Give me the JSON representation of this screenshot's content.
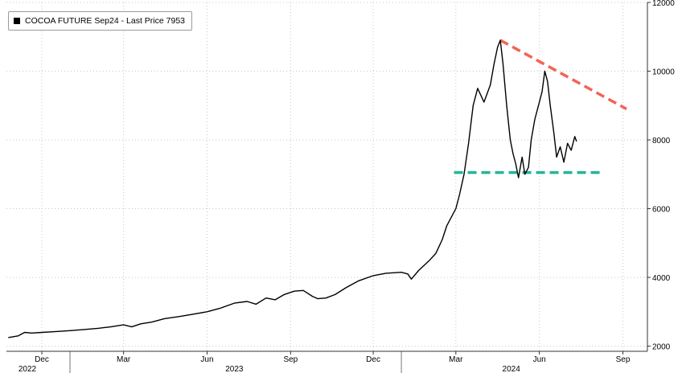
{
  "chart_data": {
    "type": "line",
    "legend_placement": "top-left",
    "grid": true,
    "series": [
      {
        "name": "COCOA FUTURE Sep24 - Last Price 7953",
        "color": "#000000",
        "points": [
          [
            "2022-10-25",
            2250
          ],
          [
            "2022-11-05",
            2300
          ],
          [
            "2022-11-12",
            2400
          ],
          [
            "2022-11-20",
            2380
          ],
          [
            "2022-12-01",
            2400
          ],
          [
            "2022-12-15",
            2420
          ],
          [
            "2023-01-01",
            2450
          ],
          [
            "2023-01-15",
            2480
          ],
          [
            "2023-02-01",
            2520
          ],
          [
            "2023-02-15",
            2560
          ],
          [
            "2023-03-01",
            2620
          ],
          [
            "2023-03-10",
            2560
          ],
          [
            "2023-03-20",
            2650
          ],
          [
            "2023-04-01",
            2700
          ],
          [
            "2023-04-15",
            2800
          ],
          [
            "2023-05-01",
            2860
          ],
          [
            "2023-05-15",
            2920
          ],
          [
            "2023-06-01",
            3000
          ],
          [
            "2023-06-15",
            3100
          ],
          [
            "2023-07-01",
            3250
          ],
          [
            "2023-07-15",
            3300
          ],
          [
            "2023-07-25",
            3220
          ],
          [
            "2023-08-05",
            3400
          ],
          [
            "2023-08-15",
            3350
          ],
          [
            "2023-08-25",
            3500
          ],
          [
            "2023-09-05",
            3600
          ],
          [
            "2023-09-15",
            3620
          ],
          [
            "2023-09-25",
            3450
          ],
          [
            "2023-10-01",
            3380
          ],
          [
            "2023-10-10",
            3400
          ],
          [
            "2023-10-20",
            3500
          ],
          [
            "2023-11-01",
            3700
          ],
          [
            "2023-11-15",
            3900
          ],
          [
            "2023-12-01",
            4050
          ],
          [
            "2023-12-15",
            4120
          ],
          [
            "2024-01-01",
            4150
          ],
          [
            "2024-01-08",
            4100
          ],
          [
            "2024-01-12",
            3950
          ],
          [
            "2024-01-20",
            4200
          ],
          [
            "2024-02-01",
            4500
          ],
          [
            "2024-02-08",
            4700
          ],
          [
            "2024-02-15",
            5100
          ],
          [
            "2024-02-20",
            5500
          ],
          [
            "2024-02-26",
            5800
          ],
          [
            "2024-03-01",
            6000
          ],
          [
            "2024-03-05",
            6400
          ],
          [
            "2024-03-10",
            7000
          ],
          [
            "2024-03-15",
            7900
          ],
          [
            "2024-03-20",
            9000
          ],
          [
            "2024-03-25",
            9500
          ],
          [
            "2024-04-01",
            9100
          ],
          [
            "2024-04-08",
            9600
          ],
          [
            "2024-04-12",
            10200
          ],
          [
            "2024-04-16",
            10700
          ],
          [
            "2024-04-19",
            10900
          ],
          [
            "2024-04-22",
            10200
          ],
          [
            "2024-04-26",
            9000
          ],
          [
            "2024-04-30",
            8000
          ],
          [
            "2024-05-03",
            7600
          ],
          [
            "2024-05-06",
            7300
          ],
          [
            "2024-05-09",
            6900
          ],
          [
            "2024-05-13",
            7500
          ],
          [
            "2024-05-16",
            7000
          ],
          [
            "2024-05-20",
            7200
          ],
          [
            "2024-05-23",
            8000
          ],
          [
            "2024-05-27",
            8600
          ],
          [
            "2024-05-31",
            9000
          ],
          [
            "2024-06-04",
            9400
          ],
          [
            "2024-06-07",
            10000
          ],
          [
            "2024-06-10",
            9700
          ],
          [
            "2024-06-13",
            9000
          ],
          [
            "2024-06-17",
            8200
          ],
          [
            "2024-06-20",
            7500
          ],
          [
            "2024-06-24",
            7800
          ],
          [
            "2024-06-28",
            7350
          ],
          [
            "2024-07-02",
            7900
          ],
          [
            "2024-07-06",
            7700
          ],
          [
            "2024-07-10",
            8100
          ],
          [
            "2024-07-12",
            7953
          ]
        ]
      }
    ],
    "annotations": [
      {
        "type": "trendline",
        "color": "#f26454",
        "from": [
          "2024-04-19",
          10900
        ],
        "to": [
          "2024-09-05",
          8900
        ]
      },
      {
        "type": "support",
        "color": "#22b59b",
        "from": [
          "2024-02-28",
          7050
        ],
        "to": [
          "2024-08-10",
          7050
        ]
      }
    ],
    "xlim": [
      "2022-10-23",
      "2024-09-28"
    ],
    "ylim": [
      1850,
      12000
    ],
    "y_ticks": [
      2000,
      4000,
      6000,
      8000,
      10000,
      12000
    ],
    "x_ticks": [
      {
        "date": "2022-12-01",
        "label": "Dec"
      },
      {
        "date": "2023-03-01",
        "label": "Mar"
      },
      {
        "date": "2023-06-01",
        "label": "Jun"
      },
      {
        "date": "2023-09-01",
        "label": "Sep"
      },
      {
        "date": "2023-12-01",
        "label": "Dec"
      },
      {
        "date": "2024-03-01",
        "label": "Mar"
      },
      {
        "date": "2024-06-01",
        "label": "Jun"
      },
      {
        "date": "2024-09-01",
        "label": "Sep"
      }
    ],
    "year_labels": [
      {
        "date": "2022-11-15",
        "label": "2022"
      },
      {
        "date": "2023-07-01",
        "label": "2023"
      },
      {
        "date": "2024-05-01",
        "label": "2024"
      }
    ],
    "year_separators": [
      "2023-01-01",
      "2024-01-01"
    ]
  }
}
